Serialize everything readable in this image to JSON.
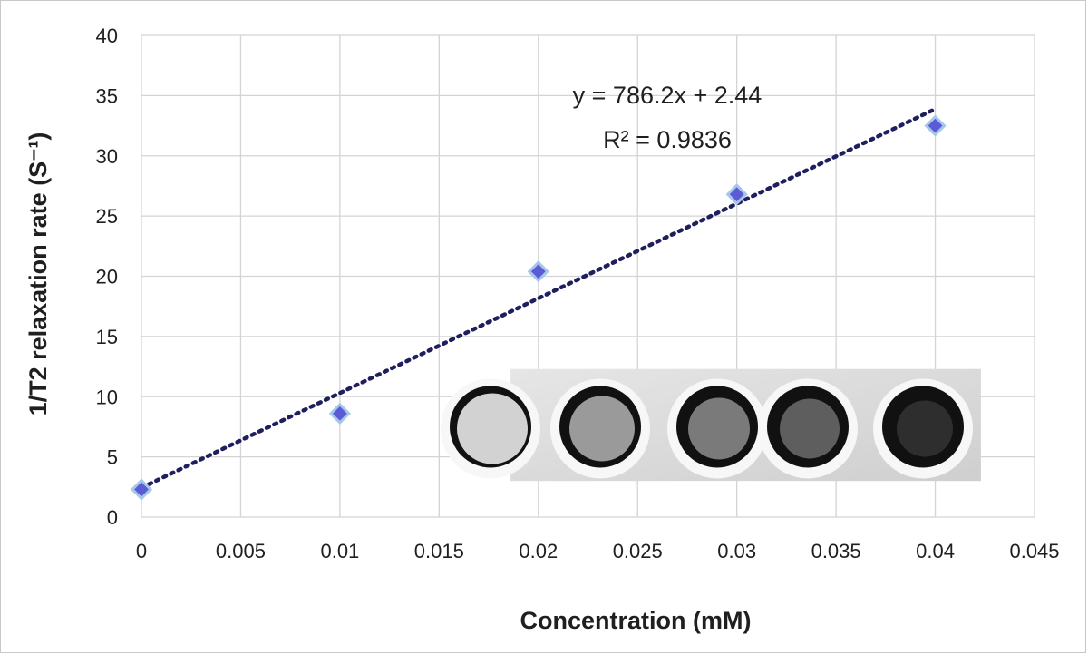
{
  "chart_data": {
    "type": "scatter",
    "xlabel": "Concentration (mM)",
    "ylabel": "1/T2 relaxation rate (S⁻¹)",
    "xlim": [
      0,
      0.045
    ],
    "ylim": [
      0,
      40
    ],
    "x_ticks": [
      "0",
      "0.005",
      "0.01",
      "0.015",
      "0.02",
      "0.025",
      "0.03",
      "0.035",
      "0.04",
      "0.045"
    ],
    "y_ticks": [
      "0",
      "5",
      "10",
      "15",
      "20",
      "25",
      "30",
      "35",
      "40"
    ],
    "grid": true,
    "series": [
      {
        "x": [
          0,
          0.01,
          0.02,
          0.03,
          0.04
        ],
        "values": [
          2.3,
          8.6,
          20.4,
          26.8,
          32.5
        ],
        "marker": "diamond",
        "color": "#5b5bd6"
      }
    ],
    "trendline": {
      "slope": 786.2,
      "intercept": 2.44,
      "style": "dotted",
      "color": "#1f1f5f"
    },
    "annotations": [
      "y = 786.2x + 2.44",
      "R² = 0.9836"
    ],
    "inset_image": {
      "type": "phantom-tubes",
      "tube_count": 5
    }
  }
}
